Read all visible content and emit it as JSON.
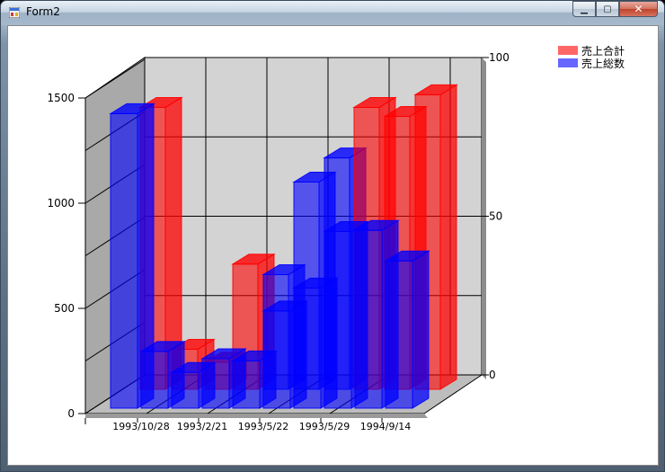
{
  "window": {
    "title": "Form2",
    "buttons": [
      "minimize",
      "maximize",
      "close"
    ]
  },
  "colors": {
    "red": "#ff0000",
    "blue": "#0000ff",
    "wall": "#d3d3d3",
    "side": "#a9a9a9"
  },
  "chart_data": {
    "type": "bar",
    "title": "",
    "categories": [
      "1993/10/28",
      "1993/2/21",
      "1993/5/22",
      "1993/5/29",
      "1994/9/14"
    ],
    "groups": [
      {
        "red": [
          1340,
          190,
          128,
          595,
          480
        ],
        "blue": [
          1400,
          270,
          170,
          235,
          225
        ]
      },
      {
        "red": [
          1340,
          1380,
          1400
        ],
        "blue": [
          545,
          985,
          1100,
          840,
          845,
          700
        ]
      }
    ],
    "series": [
      {
        "name": "売上合計",
        "color": "red",
        "axis": "right"
      },
      {
        "name": "売上総数",
        "color": "blue",
        "axis": "left"
      }
    ],
    "left_axis": {
      "ticks": [
        "0",
        "500",
        "1000",
        "1500"
      ],
      "ylim": [
        0,
        1500
      ]
    },
    "right_axis": {
      "ticks": [
        "0",
        "50",
        "100"
      ],
      "ylim": [
        0,
        100
      ]
    },
    "grid": true,
    "legend_position": "top-right"
  }
}
